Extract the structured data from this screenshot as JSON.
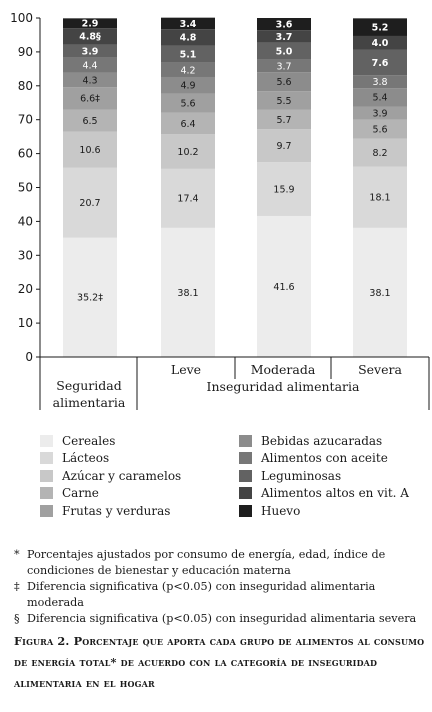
{
  "chart_data": {
    "type": "bar",
    "stacked": true,
    "ylim": [
      0,
      100
    ],
    "yticks": [
      "0",
      "10",
      "20",
      "30",
      "40",
      "50",
      "60",
      "70",
      "80",
      "90",
      "100"
    ],
    "grid": false,
    "legend_position": "bottom",
    "group_label": "Inseguridad alimentaria",
    "categories": [
      "Seguridad alimentaria",
      "Leve",
      "Moderada",
      "Severa"
    ],
    "series": [
      {
        "name": "Cereales",
        "color": "#ececec",
        "label_color": "#1a1a1a",
        "values": [
          35.2,
          38.1,
          41.6,
          38.1
        ],
        "labels": [
          "35.2‡",
          "38.1",
          "41.6",
          "38.1"
        ]
      },
      {
        "name": "Lácteos",
        "color": "#d9d9d9",
        "label_color": "#1a1a1a",
        "values": [
          20.7,
          17.4,
          15.9,
          18.1
        ],
        "labels": [
          "20.7",
          "17.4",
          "15.9",
          "18.1"
        ]
      },
      {
        "name": "Azúcar y caramelos",
        "color": "#c8c8c8",
        "label_color": "#1a1a1a",
        "values": [
          10.6,
          10.2,
          9.7,
          8.2
        ],
        "labels": [
          "10.6",
          "10.2",
          "9.7",
          "8.2"
        ]
      },
      {
        "name": "Carne",
        "color": "#b4b4b4",
        "label_color": "#1a1a1a",
        "values": [
          6.5,
          6.4,
          5.7,
          5.6
        ],
        "labels": [
          "6.5",
          "6.4",
          "5.7",
          "5.6"
        ]
      },
      {
        "name": "Frutas y verduras",
        "color": "#a0a0a0",
        "label_color": "#1a1a1a",
        "values": [
          6.6,
          5.6,
          5.5,
          3.9
        ],
        "labels": [
          "6.6‡",
          "5.6",
          "5.5",
          "3.9"
        ]
      },
      {
        "name": "Bebidas azucaradas",
        "color": "#8c8c8c",
        "label_color": "#1a1a1a",
        "values": [
          4.3,
          4.9,
          5.6,
          5.4
        ],
        "labels": [
          "4.3",
          "4.9",
          "5.6",
          "5.4"
        ]
      },
      {
        "name": "Alimentos con aceite",
        "color": "#777777",
        "label_color": "#ffffff",
        "values": [
          4.4,
          4.2,
          3.7,
          3.8
        ],
        "labels": [
          "4.4",
          "4.2",
          "3.7",
          "3.8"
        ]
      },
      {
        "name": "Leguminosas",
        "color": "#626262",
        "label_color": "#ffffff",
        "values": [
          3.9,
          5.1,
          5.0,
          7.6
        ],
        "labels": [
          "3.9",
          "5.1",
          "5.0",
          "7.6"
        ]
      },
      {
        "name": "Alimentos altos en vit. A",
        "color": "#444444",
        "label_color": "#ffffff",
        "values": [
          4.8,
          4.8,
          3.7,
          4.0
        ],
        "labels": [
          "4.8§",
          "4.8",
          "3.7",
          "4.0"
        ]
      },
      {
        "name": "Huevo",
        "color": "#1e1e1e",
        "label_color": "#ffffff",
        "values": [
          2.9,
          3.4,
          3.6,
          5.2
        ],
        "labels": [
          "2.9",
          "3.4",
          "3.6",
          "5.2"
        ]
      }
    ]
  },
  "notes": [
    {
      "symbol": "*",
      "text": "Porcentajes ajustados por consumo de energía, edad, índice de condiciones de bienestar y educación materna"
    },
    {
      "symbol": "‡",
      "text": "Diferencia significativa (p<0.05) con inseguridad alimentaria moderada"
    },
    {
      "symbol": "§",
      "text": "Diferencia significativa (p<0.05) con inseguridad alimentaria severa"
    }
  ],
  "caption": "Figura 2. Porcentaje que aporta cada grupo de alimentos al consumo de energía total* de acuerdo con la categoría de inseguridad alimentaria en el hogar"
}
